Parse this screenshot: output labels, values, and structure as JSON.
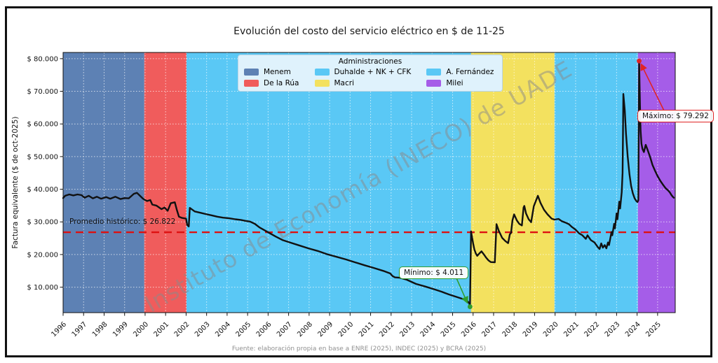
{
  "chart": {
    "title": "Evolución del costo del servicio eléctrico en $ de 11-25",
    "y_axis_label": "Factura equivalente ($ de oct-2025)",
    "watermark": "Instituto de Economía (INECO) de UADE",
    "source": "Fuente: elaboración propia en base a ENRE (2025), INDEC (2025) y BCRA (2025)"
  },
  "legend": {
    "title": "Administraciones",
    "columns": [
      [
        {
          "label": "Menem",
          "color": "#5d81b4"
        },
        {
          "label": "De la Rúa",
          "color": "#f05c5c"
        }
      ],
      [
        {
          "label": "Duhalde + NK + CFK",
          "color": "#5ac8f5"
        },
        {
          "label": "Macri",
          "color": "#f3e15f"
        }
      ],
      [
        {
          "label": "A. Fernández",
          "color": "#5ac8f5"
        },
        {
          "label": "Milei",
          "color": "#a55de8"
        }
      ]
    ]
  },
  "chart_data": {
    "type": "line",
    "title": "Evolución del costo del servicio eléctrico en $ de 11-25",
    "xlabel": "",
    "ylabel": "Factura equivalente ($ de oct-2025)",
    "xlim": [
      1996.0,
      2025.86
    ],
    "ylim": [
      2200,
      81900
    ],
    "grid": true,
    "legend_position": "upper center",
    "x_ticks": [
      1996,
      1997,
      1998,
      1999,
      2000,
      2001,
      2002,
      2003,
      2004,
      2005,
      2006,
      2007,
      2008,
      2009,
      2010,
      2011,
      2012,
      2013,
      2014,
      2015,
      2016,
      2017,
      2018,
      2019,
      2020,
      2021,
      2022,
      2023,
      2024,
      2025
    ],
    "y_ticks": [
      {
        "value": 10000,
        "label": "$ 10.000"
      },
      {
        "value": 20000,
        "label": "$ 20.000"
      },
      {
        "value": 30000,
        "label": "$ 30.000"
      },
      {
        "value": 40000,
        "label": "$ 40.000"
      },
      {
        "value": 50000,
        "label": "$ 50.000"
      },
      {
        "value": 60000,
        "label": "$ 60.000"
      },
      {
        "value": 70000,
        "label": "$ 70.000"
      },
      {
        "value": 80000,
        "label": "$ 80.000"
      }
    ],
    "bands": [
      {
        "label": "Menem",
        "from": 1996.0,
        "to": 1999.96,
        "color": "#5d81b4"
      },
      {
        "label": "De la Rúa",
        "from": 1999.96,
        "to": 2002.02,
        "color": "#f05c5c"
      },
      {
        "label": "Duhalde + NK + CFK",
        "from": 2002.02,
        "to": 2015.9,
        "color": "#5ac8f5"
      },
      {
        "label": "Macri",
        "from": 2015.9,
        "to": 2019.97,
        "color": "#f3e15f"
      },
      {
        "label": "A. Fernández",
        "from": 2019.97,
        "to": 2024.04,
        "color": "#5ac8f5"
      },
      {
        "label": "Milei",
        "from": 2024.04,
        "to": 2025.86,
        "color": "#a55de8"
      }
    ],
    "average_line": {
      "value": 26822,
      "label": "Promedio histórico: $ 26.822",
      "color": "#dd1111",
      "style": "dashed"
    },
    "min_point": {
      "year": 2015.85,
      "value": 4011,
      "label": "Mínimo: $ 4.011",
      "color": "#2f9e2f"
    },
    "max_point": {
      "year": 2024.1,
      "value": 79292,
      "label": "Máximo: $ 79.292",
      "color": "#e02424"
    },
    "series": [
      {
        "name": "Factura equivalente",
        "color": "#111111",
        "points": [
          [
            1996.0,
            37300
          ],
          [
            1996.1,
            38000
          ],
          [
            1996.3,
            38400
          ],
          [
            1996.5,
            38100
          ],
          [
            1996.7,
            38400
          ],
          [
            1996.9,
            38200
          ],
          [
            1997.05,
            37400
          ],
          [
            1997.25,
            38000
          ],
          [
            1997.45,
            37200
          ],
          [
            1997.65,
            37700
          ],
          [
            1997.85,
            37100
          ],
          [
            1998.1,
            37600
          ],
          [
            1998.3,
            37100
          ],
          [
            1998.55,
            37700
          ],
          [
            1998.8,
            37000
          ],
          [
            1999.0,
            37300
          ],
          [
            1999.2,
            37200
          ],
          [
            1999.45,
            38600
          ],
          [
            1999.6,
            38900
          ],
          [
            1999.75,
            38000
          ],
          [
            1999.9,
            37100
          ],
          [
            2000.0,
            36700
          ],
          [
            2000.1,
            36400
          ],
          [
            2000.25,
            36700
          ],
          [
            2000.35,
            35300
          ],
          [
            2000.55,
            35000
          ],
          [
            2000.8,
            33900
          ],
          [
            2000.95,
            34400
          ],
          [
            2001.1,
            33400
          ],
          [
            2001.25,
            35700
          ],
          [
            2001.45,
            36000
          ],
          [
            2001.55,
            33600
          ],
          [
            2001.65,
            31600
          ],
          [
            2001.8,
            31200
          ],
          [
            2002.0,
            31000
          ],
          [
            2002.05,
            29100
          ],
          [
            2002.13,
            28600
          ],
          [
            2002.18,
            34300
          ],
          [
            2002.42,
            33200
          ],
          [
            2002.75,
            32700
          ],
          [
            2002.95,
            32400
          ],
          [
            2003.25,
            32000
          ],
          [
            2003.52,
            31600
          ],
          [
            2003.8,
            31300
          ],
          [
            2004.1,
            31100
          ],
          [
            2004.4,
            30800
          ],
          [
            2004.67,
            30600
          ],
          [
            2004.9,
            30300
          ],
          [
            2005.12,
            30100
          ],
          [
            2005.35,
            29400
          ],
          [
            2005.58,
            28300
          ],
          [
            2005.81,
            27500
          ],
          [
            2006.03,
            26700
          ],
          [
            2006.37,
            25500
          ],
          [
            2006.72,
            24400
          ],
          [
            2007.06,
            23700
          ],
          [
            2007.51,
            22800
          ],
          [
            2007.97,
            21900
          ],
          [
            2008.42,
            21100
          ],
          [
            2008.88,
            20100
          ],
          [
            2009.34,
            19300
          ],
          [
            2009.79,
            18500
          ],
          [
            2010.25,
            17600
          ],
          [
            2010.71,
            16700
          ],
          [
            2011.16,
            15900
          ],
          [
            2011.62,
            15000
          ],
          [
            2011.96,
            14200
          ],
          [
            2012.07,
            13400
          ],
          [
            2012.19,
            13000
          ],
          [
            2012.42,
            12900
          ],
          [
            2012.76,
            12300
          ],
          [
            2013.21,
            11000
          ],
          [
            2013.67,
            10200
          ],
          [
            2014.13,
            9300
          ],
          [
            2014.47,
            8600
          ],
          [
            2014.81,
            7800
          ],
          [
            2015.15,
            7100
          ],
          [
            2015.49,
            6400
          ],
          [
            2015.72,
            5800
          ],
          [
            2015.81,
            5100
          ],
          [
            2015.85,
            4011
          ],
          [
            2015.9,
            27100
          ],
          [
            2016.0,
            23500
          ],
          [
            2016.06,
            21600
          ],
          [
            2016.13,
            20400
          ],
          [
            2016.2,
            19600
          ],
          [
            2016.3,
            20300
          ],
          [
            2016.41,
            21000
          ],
          [
            2016.52,
            20100
          ],
          [
            2016.63,
            19100
          ],
          [
            2016.75,
            18200
          ],
          [
            2016.86,
            17700
          ],
          [
            2017.06,
            17600
          ],
          [
            2017.14,
            29300
          ],
          [
            2017.25,
            27300
          ],
          [
            2017.42,
            25100
          ],
          [
            2017.58,
            24100
          ],
          [
            2017.71,
            23500
          ],
          [
            2017.79,
            26200
          ],
          [
            2017.85,
            26600
          ],
          [
            2017.92,
            30500
          ],
          [
            2018.0,
            32300
          ],
          [
            2018.13,
            30500
          ],
          [
            2018.25,
            29400
          ],
          [
            2018.38,
            28900
          ],
          [
            2018.46,
            34400
          ],
          [
            2018.5,
            34900
          ],
          [
            2018.58,
            32600
          ],
          [
            2018.71,
            30800
          ],
          [
            2018.83,
            29900
          ],
          [
            2018.96,
            34800
          ],
          [
            2019.16,
            38000
          ],
          [
            2019.29,
            35800
          ],
          [
            2019.46,
            33700
          ],
          [
            2019.63,
            32300
          ],
          [
            2019.83,
            31000
          ],
          [
            2019.97,
            30700
          ],
          [
            2020.17,
            30900
          ],
          [
            2020.33,
            30200
          ],
          [
            2020.5,
            29800
          ],
          [
            2020.67,
            29300
          ],
          [
            2020.83,
            28400
          ],
          [
            2021.0,
            27600
          ],
          [
            2021.17,
            26500
          ],
          [
            2021.33,
            25900
          ],
          [
            2021.5,
            24800
          ],
          [
            2021.58,
            25900
          ],
          [
            2021.75,
            24400
          ],
          [
            2021.92,
            23700
          ],
          [
            2022.08,
            22300
          ],
          [
            2022.17,
            21700
          ],
          [
            2022.25,
            23400
          ],
          [
            2022.33,
            22100
          ],
          [
            2022.42,
            22900
          ],
          [
            2022.5,
            21900
          ],
          [
            2022.58,
            23700
          ],
          [
            2022.63,
            22900
          ],
          [
            2022.75,
            26900
          ],
          [
            2022.79,
            25900
          ],
          [
            2022.88,
            29400
          ],
          [
            2022.92,
            28000
          ],
          [
            2023.0,
            32600
          ],
          [
            2023.04,
            30800
          ],
          [
            2023.13,
            36200
          ],
          [
            2023.17,
            34100
          ],
          [
            2023.25,
            39100
          ],
          [
            2023.29,
            45000
          ],
          [
            2023.31,
            55000
          ],
          [
            2023.33,
            69200
          ],
          [
            2023.4,
            64000
          ],
          [
            2023.46,
            57000
          ],
          [
            2023.54,
            50000
          ],
          [
            2023.63,
            44500
          ],
          [
            2023.71,
            41000
          ],
          [
            2023.79,
            38800
          ],
          [
            2023.88,
            37200
          ],
          [
            2023.96,
            36400
          ],
          [
            2024.02,
            36100
          ],
          [
            2024.06,
            36600
          ],
          [
            2024.1,
            79292
          ],
          [
            2024.14,
            66000
          ],
          [
            2024.17,
            58000
          ],
          [
            2024.21,
            54000
          ],
          [
            2024.26,
            52400
          ],
          [
            2024.33,
            51400
          ],
          [
            2024.42,
            53600
          ],
          [
            2024.5,
            52300
          ],
          [
            2024.63,
            50000
          ],
          [
            2024.75,
            47500
          ],
          [
            2024.88,
            45600
          ],
          [
            2025.0,
            44000
          ],
          [
            2025.13,
            42600
          ],
          [
            2025.25,
            41500
          ],
          [
            2025.38,
            40400
          ],
          [
            2025.5,
            39700
          ],
          [
            2025.6,
            39000
          ],
          [
            2025.68,
            38200
          ],
          [
            2025.74,
            37700
          ],
          [
            2025.79,
            37400
          ]
        ]
      }
    ]
  }
}
